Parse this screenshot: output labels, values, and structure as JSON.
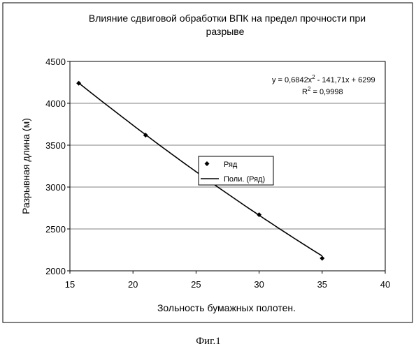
{
  "chart_data": {
    "type": "scatter",
    "title_line1": "Влияние сдвиговой обработки ВПК на предел прочности при",
    "title_line2": "разрыве",
    "xlabel": "Зольность бумажных полотен.",
    "ylabel": "Разрывная длина (м)",
    "xlim": [
      15,
      40
    ],
    "ylim": [
      2000,
      4500
    ],
    "x_ticks": [
      15,
      20,
      25,
      30,
      35,
      40
    ],
    "y_ticks": [
      2000,
      2500,
      3000,
      3500,
      4000,
      4500
    ],
    "y_gridlines": true,
    "series": [
      {
        "name": "Ряд",
        "marker": "diamond",
        "x": [
          15.7,
          21,
          30,
          35
        ],
        "y": [
          4240,
          3620,
          2670,
          2150
        ]
      },
      {
        "name": "Поли. (Ряд)",
        "kind": "fit",
        "x_range": [
          15.7,
          35
        ],
        "coefficients": [
          0.6842,
          -141.71,
          6299
        ]
      }
    ],
    "equation_main": "y = 0,6842x",
    "equation_sup": "2",
    "equation_rest": " - 141,71x + 6299",
    "r2_prefix": "R",
    "r2_sup": "2",
    "r2_value": " = 0,9998",
    "legend_position": "center",
    "colors": {
      "marker": "#000000",
      "line": "#000000",
      "grid": "#808080"
    }
  },
  "caption": "Фиг.1"
}
